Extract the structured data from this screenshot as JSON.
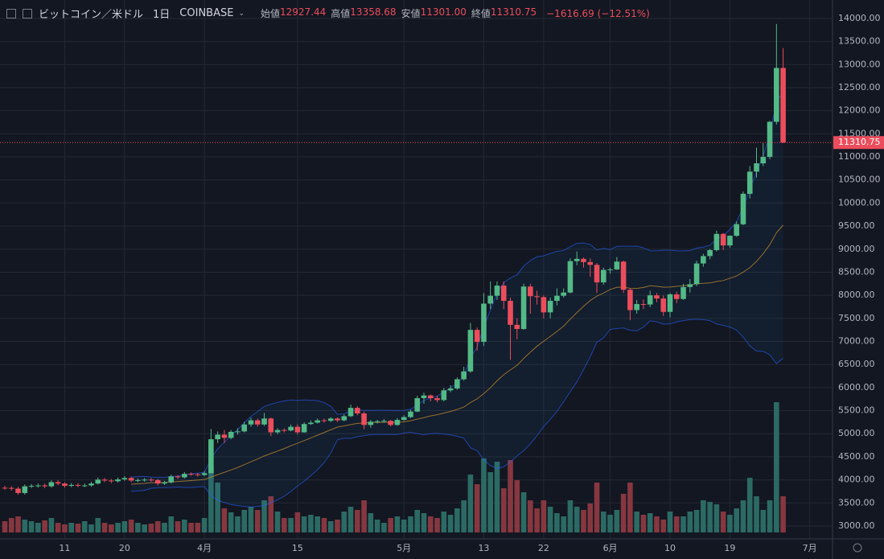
{
  "chart_data": {
    "type": "candlestick",
    "header": {
      "symbol": "ビットコイン／米ドル",
      "interval": "1日",
      "exchange": "COINBASE",
      "ohlc": [
        {
          "label": "始値",
          "value": "12927.44"
        },
        {
          "label": "高値",
          "value": "13358.68"
        },
        {
          "label": "安値",
          "value": "11301.00"
        },
        {
          "label": "終値",
          "value": "11310.75"
        }
      ],
      "change": "−1616.69 (−12.51%)"
    },
    "categories": [
      null,
      null,
      null,
      null,
      null,
      null,
      null,
      null,
      null,
      "11",
      null,
      null,
      null,
      null,
      null,
      null,
      null,
      null,
      "20",
      null,
      null,
      null,
      null,
      null,
      null,
      null,
      null,
      null,
      null,
      null,
      "4月",
      null,
      null,
      null,
      null,
      null,
      null,
      null,
      null,
      null,
      null,
      null,
      null,
      null,
      "15",
      null,
      null,
      null,
      null,
      null,
      null,
      null,
      null,
      null,
      null,
      null,
      null,
      null,
      null,
      null,
      "5月",
      null,
      null,
      null,
      null,
      null,
      null,
      null,
      null,
      null,
      null,
      null,
      "13",
      null,
      null,
      null,
      null,
      null,
      null,
      null,
      null,
      "22",
      null,
      null,
      null,
      null,
      null,
      null,
      null,
      null,
      null,
      "6月",
      null,
      null,
      null,
      null,
      null,
      null,
      null,
      null,
      "10",
      null,
      null,
      null,
      null,
      null,
      null,
      null,
      null,
      "19",
      null,
      null,
      null,
      null,
      null,
      null,
      null,
      null,
      null,
      null,
      null,
      "7月"
    ],
    "open": [
      3830,
      3825,
      3810,
      3715,
      3860,
      3870,
      3880,
      3860,
      3950,
      3920,
      3870,
      3890,
      3875,
      3880,
      3920,
      4005,
      3985,
      3970,
      4010,
      4040,
      3985,
      3995,
      4005,
      3995,
      3920,
      3945,
      4075,
      4055,
      4130,
      4120,
      4105,
      4145,
      4880,
      4980,
      4910,
      5040,
      5050,
      5200,
      5290,
      5200,
      5330,
      5030,
      5080,
      5070,
      5150,
      5030,
      5210,
      5240,
      5290,
      5280,
      5330,
      5290,
      5380,
      5560,
      5440,
      5190,
      5260,
      5270,
      5280,
      5190,
      5300,
      5360,
      5480,
      5770,
      5830,
      5770,
      5730,
      5940,
      5980,
      6180,
      6350,
      7250,
      6990,
      7820,
      7990,
      8210,
      7880,
      7360,
      7270,
      8190,
      7980,
      7960,
      7630,
      7880,
      7990,
      8060,
      8740,
      8790,
      8720,
      8660,
      8280,
      8550,
      8560,
      8730,
      8120,
      7680,
      7810,
      7800,
      8000,
      7930,
      7640,
      8020,
      7920,
      8180,
      8240,
      8690,
      8850,
      8980,
      9330,
      9080,
      9290,
      9540,
      10200,
      10680,
      10860,
      11000,
      11760,
      12927.44,
      null,
      null,
      null,
      null
    ],
    "high": [
      3870,
      3865,
      3850,
      3900,
      3910,
      3920,
      3920,
      3990,
      3990,
      3950,
      3930,
      3930,
      3920,
      3960,
      4050,
      4040,
      4020,
      4050,
      4080,
      4070,
      4030,
      4040,
      4040,
      4020,
      3980,
      4110,
      4100,
      4170,
      4160,
      4150,
      4190,
      5100,
      5050,
      5080,
      5080,
      5120,
      5260,
      5350,
      5330,
      5450,
      5350,
      5120,
      5120,
      5200,
      5200,
      5250,
      5290,
      5330,
      5330,
      5360,
      5350,
      5420,
      5630,
      5600,
      5480,
      5300,
      5300,
      5320,
      5300,
      5340,
      5400,
      5520,
      5820,
      5890,
      5850,
      5820,
      5990,
      6050,
      6220,
      6450,
      7400,
      7300,
      8050,
      8300,
      8300,
      8300,
      7950,
      7500,
      8250,
      8250,
      8100,
      8000,
      7950,
      8150,
      8150,
      8800,
      8950,
      8820,
      8800,
      8700,
      8600,
      8600,
      8830,
      8750,
      8150,
      7900,
      7910,
      8100,
      8050,
      8000,
      8050,
      8080,
      8250,
      8350,
      8750,
      8900,
      9000,
      9400,
      9350,
      9300,
      9600,
      10250,
      10800,
      11200,
      11300,
      11780,
      13880,
      13358.68,
      null,
      null,
      null,
      null
    ],
    "low": [
      3785,
      3770,
      3680,
      3680,
      3825,
      3830,
      3820,
      3830,
      3880,
      3830,
      3840,
      3840,
      3840,
      3850,
      3900,
      3950,
      3930,
      3940,
      3980,
      3950,
      3950,
      3960,
      3960,
      3880,
      3890,
      3920,
      4020,
      4030,
      4090,
      4070,
      4080,
      4140,
      4800,
      4800,
      4880,
      4980,
      5030,
      5150,
      5150,
      5170,
      4950,
      4990,
      5030,
      5050,
      4980,
      5020,
      5190,
      5220,
      5240,
      5250,
      5250,
      5270,
      5360,
      5400,
      5100,
      5130,
      5220,
      5240,
      5160,
      5170,
      5280,
      5340,
      5470,
      5650,
      5700,
      5680,
      5700,
      5900,
      5950,
      6150,
      6320,
      6800,
      6900,
      7700,
      7900,
      7700,
      6600,
      7050,
      7250,
      7600,
      7800,
      7500,
      7500,
      7780,
      7950,
      8040,
      8650,
      8600,
      8400,
      8050,
      8230,
      8470,
      8550,
      8050,
      7460,
      7600,
      7700,
      7740,
      7850,
      7550,
      7520,
      7830,
      7900,
      8060,
      8200,
      8620,
      8780,
      8950,
      8980,
      9030,
      9270,
      9520,
      10100,
      10550,
      10800,
      10950,
      11700,
      11301,
      null,
      null,
      null,
      null
    ],
    "close": [
      3825,
      3810,
      3715,
      3860,
      3870,
      3880,
      3860,
      3950,
      3920,
      3870,
      3890,
      3875,
      3880,
      3920,
      4005,
      3985,
      3970,
      4010,
      4040,
      3985,
      3995,
      4005,
      3995,
      3920,
      3945,
      4075,
      4055,
      4130,
      4120,
      4105,
      4145,
      4880,
      4980,
      4910,
      5040,
      5050,
      5200,
      5290,
      5200,
      5330,
      5030,
      5080,
      5070,
      5150,
      5030,
      5210,
      5240,
      5290,
      5280,
      5330,
      5290,
      5380,
      5560,
      5440,
      5190,
      5260,
      5270,
      5280,
      5190,
      5300,
      5360,
      5480,
      5770,
      5830,
      5770,
      5730,
      5940,
      5980,
      6180,
      6350,
      7250,
      6990,
      7820,
      7990,
      8210,
      7880,
      7360,
      7270,
      8190,
      7980,
      7960,
      7630,
      7880,
      7990,
      8060,
      8740,
      8790,
      8720,
      8660,
      8280,
      8550,
      8560,
      8730,
      8120,
      7680,
      7810,
      7800,
      8000,
      7930,
      7640,
      8020,
      7920,
      8180,
      8240,
      8690,
      8850,
      8980,
      9330,
      9080,
      9290,
      9540,
      10200,
      10680,
      10860,
      11000,
      11760,
      12927.44,
      11310.75,
      null,
      null,
      null,
      null
    ],
    "volume": [
      14,
      18,
      20,
      16,
      14,
      12,
      15,
      18,
      12,
      10,
      12,
      11,
      14,
      10,
      18,
      12,
      10,
      12,
      14,
      16,
      12,
      10,
      11,
      14,
      12,
      20,
      14,
      16,
      12,
      12,
      18,
      82,
      62,
      30,
      25,
      20,
      28,
      32,
      28,
      40,
      45,
      26,
      18,
      18,
      25,
      20,
      22,
      20,
      18,
      14,
      16,
      26,
      32,
      28,
      40,
      24,
      16,
      12,
      18,
      20,
      16,
      20,
      28,
      24,
      20,
      18,
      26,
      22,
      30,
      40,
      72,
      60,
      92,
      75,
      88,
      55,
      90,
      65,
      50,
      40,
      30,
      40,
      32,
      24,
      20,
      40,
      32,
      28,
      36,
      62,
      26,
      22,
      28,
      48,
      62,
      26,
      22,
      24,
      20,
      16,
      26,
      20,
      20,
      26,
      28,
      40,
      38,
      35,
      26,
      22,
      30,
      40,
      68,
      45,
      28,
      40,
      162,
      45,
      null,
      null,
      null,
      null
    ],
    "up_color": "#53b987",
    "down_color": "#eb4d5c",
    "volume_up_color": "#2c6a64",
    "volume_down_color": "#86373f",
    "ylim": [
      2860,
      14400
    ],
    "vlim": [
      0,
      170
    ],
    "grid": true,
    "yticks": [
      {
        "value": 3000,
        "label": "3000.00"
      },
      {
        "value": 3500,
        "label": "3500.00"
      },
      {
        "value": 4000,
        "label": "4000.00"
      },
      {
        "value": 4500,
        "label": "4500.00"
      },
      {
        "value": 5000,
        "label": "5000.00"
      },
      {
        "value": 5500,
        "label": "5500.00"
      },
      {
        "value": 6000,
        "label": "6000.00"
      },
      {
        "value": 6500,
        "label": "6500.00"
      },
      {
        "value": 7000,
        "label": "7000.00"
      },
      {
        "value": 7500,
        "label": "7500.00"
      },
      {
        "value": 8000,
        "label": "8000.00"
      },
      {
        "value": 8500,
        "label": "8500.00"
      },
      {
        "value": 9000,
        "label": "9000.00"
      },
      {
        "value": 9500,
        "label": "9500.00"
      },
      {
        "value": 10000,
        "label": "10000.00"
      },
      {
        "value": 10500,
        "label": "10500.00"
      },
      {
        "value": 11000,
        "label": "11000.00"
      },
      {
        "value": 11500,
        "label": "11500.00"
      },
      {
        "value": 12000,
        "label": "12000.00"
      },
      {
        "value": 12500,
        "label": "12500.00"
      },
      {
        "value": 13000,
        "label": "13000.00"
      },
      {
        "value": 13500,
        "label": "13500.00"
      },
      {
        "value": 14000,
        "label": "14000.00"
      }
    ]
  }
}
